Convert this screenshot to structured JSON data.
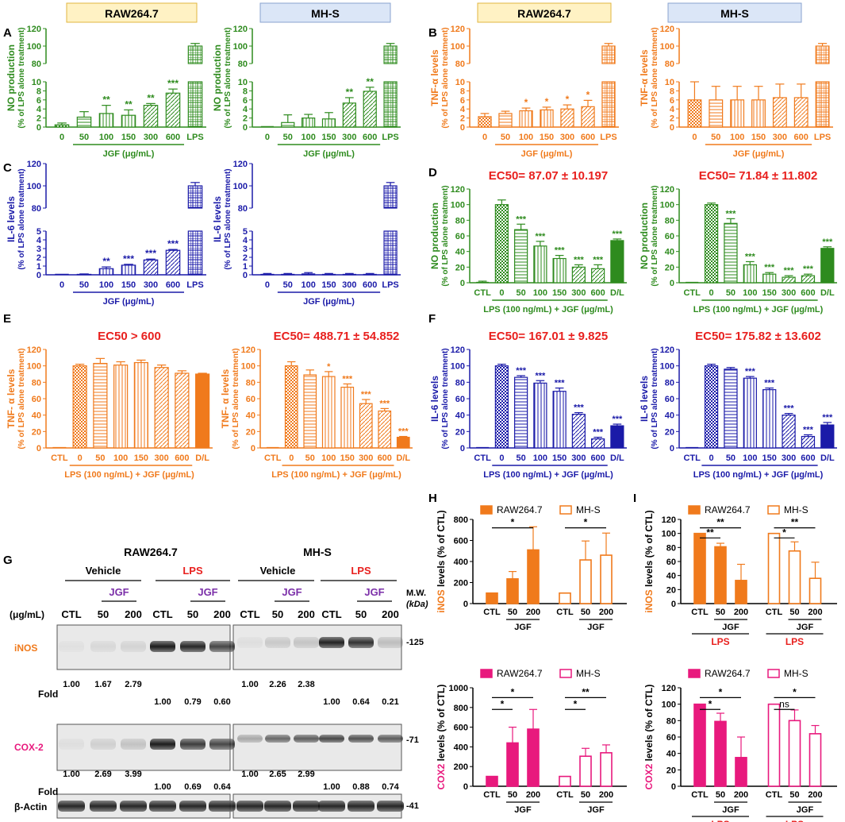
{
  "colors": {
    "green": "#2e8b1e",
    "orange": "#f07a1c",
    "blue": "#1a1aa8",
    "pink": "#e8197d",
    "red": "#e8201e",
    "purple": "#7b2fa8",
    "raw_box": "#fff2c4",
    "mhs_box": "#dbe6f7"
  },
  "panel_letters": [
    "A",
    "B",
    "C",
    "D",
    "E",
    "F",
    "G",
    "H",
    "I"
  ],
  "headers": {
    "raw": "RAW264.7",
    "mhs": "MH-S"
  },
  "chart_data": [
    {
      "id": "A1",
      "type": "bar",
      "color": "green",
      "categories": [
        "0",
        "50",
        "100",
        "150",
        "300",
        "600",
        "LPS"
      ],
      "values": [
        0.5,
        2.2,
        3.0,
        2.6,
        4.8,
        7.5,
        100
      ],
      "errors": [
        0.4,
        1.2,
        1.8,
        1.2,
        0.4,
        0.9,
        3
      ],
      "stars": [
        "",
        "",
        "**",
        "**",
        "**",
        "***",
        ""
      ],
      "ylabel": "NO production",
      "ylabel2": "(% of LPS alone treatment)",
      "xlabel": "JGF (μg/mL)",
      "yticks_low": [
        "0",
        "2",
        "4",
        "6",
        "8",
        "10"
      ],
      "yticks_high": [
        "80",
        "100",
        "120"
      ],
      "ylim_low": [
        0,
        10
      ],
      "ylim_high": [
        80,
        120
      ]
    },
    {
      "id": "A2",
      "type": "bar",
      "color": "green",
      "categories": [
        "0",
        "50",
        "100",
        "150",
        "300",
        "600",
        "LPS"
      ],
      "values": [
        0,
        1.0,
        2.0,
        1.8,
        5.3,
        7.9,
        100
      ],
      "errors": [
        0,
        1.7,
        0.8,
        1.4,
        1.2,
        0.9,
        3
      ],
      "stars": [
        "",
        "",
        "",
        "",
        "**",
        "**",
        ""
      ],
      "ylabel": "NO production",
      "ylabel2": "(% of LPS alone treatment)",
      "xlabel": "JGF (μg/mL)",
      "yticks_low": [
        "0",
        "2",
        "4",
        "6",
        "8",
        "10"
      ],
      "yticks_high": [
        "80",
        "100",
        "120"
      ],
      "ylim_low": [
        0,
        10
      ],
      "ylim_high": [
        80,
        120
      ]
    },
    {
      "id": "B1",
      "type": "bar",
      "color": "orange",
      "categories": [
        "0",
        "50",
        "100",
        "150",
        "300",
        "600",
        "LPS"
      ],
      "values": [
        2.3,
        3.0,
        3.6,
        3.8,
        4.0,
        4.5,
        100
      ],
      "errors": [
        0.7,
        0.5,
        0.6,
        0.6,
        0.9,
        1.4,
        3
      ],
      "stars": [
        "",
        "",
        "*",
        "*",
        "*",
        "*",
        ""
      ],
      "ylabel": "TNF-α levels",
      "ylabel2": "(% of LPS alone treatment)",
      "xlabel": "JGF (μg/mL)",
      "yticks_low": [
        "0",
        "2",
        "4",
        "6",
        "8",
        "10"
      ],
      "yticks_high": [
        "80",
        "100",
        "120"
      ],
      "ylim_low": [
        0,
        10
      ],
      "ylim_high": [
        80,
        120
      ]
    },
    {
      "id": "B2",
      "type": "bar",
      "color": "orange",
      "categories": [
        "0",
        "50",
        "100",
        "150",
        "300",
        "600",
        "LPS"
      ],
      "values": [
        6.0,
        6.0,
        6.0,
        6.0,
        6.5,
        6.5,
        100
      ],
      "errors": [
        4,
        3,
        3,
        3,
        3,
        3,
        3
      ],
      "stars": [
        "",
        "",
        "",
        "",
        "",
        "",
        ""
      ],
      "ylabel": "TNF-α levels",
      "ylabel2": "(% of LPS alone treatment)",
      "xlabel": "JGF (μg/mL)",
      "yticks_low": [
        "0",
        "2",
        "4",
        "6",
        "8",
        "10"
      ],
      "yticks_high": [
        "80",
        "100",
        "120"
      ],
      "ylim_low": [
        0,
        10
      ],
      "ylim_high": [
        80,
        120
      ]
    },
    {
      "id": "C1",
      "type": "bar",
      "color": "blue",
      "categories": [
        "0",
        "50",
        "100",
        "150",
        "300",
        "600",
        "LPS"
      ],
      "values": [
        0,
        0.05,
        0.7,
        1.1,
        1.7,
        2.8,
        100
      ],
      "errors": [
        0,
        0.05,
        0.2,
        0.1,
        0.1,
        0.1,
        3
      ],
      "stars": [
        "",
        "",
        "**",
        "***",
        "***",
        "***",
        ""
      ],
      "ylabel": "IL-6 levels",
      "ylabel2": "(% of LPS alone treatment)",
      "xlabel": "JGF (μg/mL)",
      "yticks_low": [
        "0",
        "1",
        "2",
        "3",
        "4",
        "5"
      ],
      "yticks_high": [
        "80",
        "100",
        "120"
      ],
      "ylim_low": [
        0,
        5
      ],
      "ylim_high": [
        80,
        120
      ]
    },
    {
      "id": "C2",
      "type": "bar",
      "color": "blue",
      "categories": [
        "0",
        "50",
        "100",
        "150",
        "300",
        "600",
        "LPS"
      ],
      "values": [
        0.05,
        0.05,
        0.1,
        0.05,
        0.05,
        0.05,
        100
      ],
      "errors": [
        0.1,
        0.1,
        0.15,
        0.1,
        0.1,
        0.1,
        3
      ],
      "stars": [
        "",
        "",
        "",
        "",
        "",
        "",
        ""
      ],
      "ylabel": "IL-6 levels",
      "ylabel2": "(% of LPS alone treatment)",
      "xlabel": "JGF (μg/mL)",
      "yticks_low": [
        "0",
        "1",
        "2",
        "3",
        "4",
        "5"
      ],
      "yticks_high": [
        "80",
        "100",
        "120"
      ],
      "ylim_low": [
        0,
        5
      ],
      "ylim_high": [
        80,
        120
      ]
    },
    {
      "id": "D1",
      "type": "bar",
      "color": "green",
      "categories": [
        "CTL",
        "0",
        "50",
        "100",
        "150",
        "300",
        "600",
        "D/L"
      ],
      "values": [
        0,
        100,
        68,
        47,
        31,
        20,
        18,
        54
      ],
      "errors": [
        2,
        6,
        7,
        6,
        4,
        3,
        5,
        2
      ],
      "stars": [
        "",
        "",
        "***",
        "***",
        "***",
        "***",
        "***",
        "***"
      ],
      "ylabel": "NO production",
      "ylabel2": "(% of LPS alone treatment)",
      "xlabel": "LPS (100 ng/mL) + JGF (μg/mL)",
      "ec50": "EC50= 87.07 ± 10.197",
      "yticks": [
        "0",
        "20",
        "40",
        "60",
        "80",
        "100",
        "120"
      ],
      "ylim": [
        0,
        120
      ]
    },
    {
      "id": "D2",
      "type": "bar",
      "color": "green",
      "categories": [
        "CTL",
        "0",
        "50",
        "100",
        "150",
        "300",
        "600",
        "D/L"
      ],
      "values": [
        0,
        100,
        76,
        23,
        11,
        7,
        9,
        44
      ],
      "errors": [
        0,
        2,
        6,
        4,
        2,
        2,
        2,
        2
      ],
      "stars": [
        "",
        "",
        "***",
        "***",
        "***",
        "***",
        "***",
        "***"
      ],
      "ylabel": "NO production",
      "ylabel2": "(% of LPS alone treatment)",
      "xlabel": "LPS (100 ng/mL) + JGF (μg/mL)",
      "ec50": "EC50= 71.84 ± 11.802",
      "yticks": [
        "0",
        "20",
        "40",
        "60",
        "80",
        "100",
        "120"
      ],
      "ylim": [
        0,
        120
      ]
    },
    {
      "id": "E1",
      "type": "bar",
      "color": "orange",
      "categories": [
        "CTL",
        "0",
        "50",
        "100",
        "150",
        "300",
        "600",
        "D/L"
      ],
      "values": [
        0,
        100,
        103,
        101,
        104,
        98,
        91,
        90
      ],
      "errors": [
        0,
        2,
        6,
        4,
        3,
        3,
        3,
        1
      ],
      "stars": [
        "",
        "",
        "",
        "",
        "",
        "",
        "",
        ""
      ],
      "ylabel": "TNF- α levels",
      "ylabel2": "(% of LPS alone treatment)",
      "xlabel": "LPS (100 ng/mL) + JGF (μg/mL)",
      "ec50": "EC50 > 600",
      "yticks": [
        "0",
        "20",
        "40",
        "60",
        "80",
        "100",
        "120"
      ],
      "ylim": [
        0,
        120
      ]
    },
    {
      "id": "E2",
      "type": "bar",
      "color": "orange",
      "categories": [
        "CTL",
        "0",
        "50",
        "100",
        "150",
        "300",
        "600",
        "D/L"
      ],
      "values": [
        0,
        100,
        89,
        87,
        74,
        54,
        45,
        13
      ],
      "errors": [
        0,
        5,
        6,
        6,
        4,
        5,
        3,
        1
      ],
      "stars": [
        "",
        "",
        "",
        "*",
        "***",
        "***",
        "***",
        "***"
      ],
      "ylabel": "TNF- α levels",
      "ylabel2": "(% of LPS alone treatment)",
      "xlabel": "LPS (100 ng/mL) + JGF (μg/mL)",
      "ec50": "EC50= 488.71 ±  54.852",
      "yticks": [
        "0",
        "20",
        "40",
        "60",
        "80",
        "100",
        "120"
      ],
      "ylim": [
        0,
        120
      ]
    },
    {
      "id": "F1",
      "type": "bar",
      "color": "blue",
      "categories": [
        "CTL",
        "0",
        "50",
        "100",
        "150",
        "300",
        "600",
        "D/L"
      ],
      "values": [
        0,
        100,
        86,
        79,
        69,
        41,
        11,
        27
      ],
      "errors": [
        0,
        2,
        2,
        3,
        4,
        2,
        2,
        2
      ],
      "stars": [
        "",
        "",
        "***",
        "***",
        "***",
        "***",
        "***",
        "***"
      ],
      "ylabel": "IL-6 levels",
      "ylabel2": "(% of LPS alone treatment)",
      "xlabel": "LPS (100 ng/mL) + JGF (μg/mL)",
      "ec50": "EC50= 167.01 ± 9.825",
      "yticks": [
        "0",
        "20",
        "40",
        "60",
        "80",
        "100",
        "120"
      ],
      "ylim": [
        0,
        120
      ]
    },
    {
      "id": "F2",
      "type": "bar",
      "color": "blue",
      "categories": [
        "CTL",
        "0",
        "50",
        "100",
        "150",
        "300",
        "600",
        "D/L"
      ],
      "values": [
        1,
        100,
        96,
        85,
        71,
        40,
        14,
        28
      ],
      "errors": [
        0,
        2,
        2,
        2,
        2,
        2,
        2,
        3
      ],
      "stars": [
        "",
        "",
        "",
        "***",
        "***",
        "***",
        "***",
        "***"
      ],
      "ylabel": "IL-6 levels",
      "ylabel2": "(% of LPS alone treatment)",
      "xlabel": "LPS (100 ng/mL) + JGF (μg/mL)",
      "ec50": "EC50= 175.82 ± 13.602",
      "yticks": [
        "0",
        "20",
        "40",
        "60",
        "80",
        "100",
        "120"
      ],
      "ylim": [
        0,
        120
      ]
    },
    {
      "id": "H1",
      "type": "bar",
      "color": "orange",
      "series": [
        {
          "name": "RAW264.7",
          "values": [
            100,
            235,
            510
          ],
          "errors": [
            0,
            70,
            220
          ]
        },
        {
          "name": "MH-S",
          "values": [
            100,
            415,
            460
          ],
          "errors": [
            0,
            180,
            210
          ]
        }
      ],
      "categories": [
        "CTL",
        "50",
        "200"
      ],
      "group_label": "JGF",
      "ylabel": "iNOS levels (% of CTL)",
      "yticks": [
        "0",
        "200",
        "400",
        "600",
        "800"
      ],
      "ylim": [
        0,
        800
      ],
      "sig": [
        [
          "",
          "*"
        ],
        [
          "",
          "*"
        ],
        [
          "",
          "*"
        ],
        [
          "",
          "*"
        ]
      ]
    },
    {
      "id": "H2",
      "type": "bar",
      "color": "pink",
      "series": [
        {
          "name": "RAW264.7",
          "values": [
            100,
            440,
            580
          ],
          "errors": [
            0,
            160,
            200
          ]
        },
        {
          "name": "MH-S",
          "values": [
            100,
            305,
            340
          ],
          "errors": [
            0,
            80,
            80
          ]
        }
      ],
      "categories": [
        "CTL",
        "50",
        "200"
      ],
      "group_label": "JGF",
      "ylabel": "COX2 levels (% of CTL)",
      "yticks": [
        "0",
        "200",
        "400",
        "600",
        "800",
        "1000"
      ],
      "ylim": [
        0,
        1000
      ],
      "sig": [
        [
          "*",
          "*"
        ],
        [
          "*",
          "**"
        ]
      ]
    },
    {
      "id": "I1",
      "type": "bar",
      "color": "orange",
      "series": [
        {
          "name": "RAW264.7",
          "values": [
            100,
            81,
            33
          ],
          "errors": [
            0,
            5,
            23
          ]
        },
        {
          "name": "MH-S",
          "values": [
            100,
            75,
            36
          ],
          "errors": [
            0,
            13,
            23
          ]
        }
      ],
      "categories": [
        "CTL",
        "50",
        "200"
      ],
      "group_label": "JGF",
      "group_label2": "LPS",
      "ylabel": "iNOS levels (% of CTL)",
      "yticks": [
        "0",
        "20",
        "40",
        "60",
        "80",
        "100",
        "120"
      ],
      "ylim": [
        0,
        120
      ],
      "sig": [
        [
          "**",
          "**"
        ],
        [
          "*",
          "**"
        ]
      ]
    },
    {
      "id": "I2",
      "type": "bar",
      "color": "pink",
      "series": [
        {
          "name": "RAW264.7",
          "values": [
            100,
            79,
            35
          ],
          "errors": [
            0,
            10,
            25
          ]
        },
        {
          "name": "MH-S",
          "values": [
            100,
            80,
            64
          ],
          "errors": [
            0,
            13,
            10
          ]
        }
      ],
      "categories": [
        "CTL",
        "50",
        "200"
      ],
      "group_label": "JGF",
      "group_label2": "LPS",
      "ylabel": "COX2 levels (% of CTL)",
      "yticks": [
        "0",
        "20",
        "40",
        "60",
        "80",
        "100",
        "120"
      ],
      "ylim": [
        0,
        120
      ],
      "sig": [
        [
          "*",
          "*"
        ],
        [
          "ns",
          "*"
        ]
      ]
    }
  ],
  "blot": {
    "title_raw": "RAW264.7",
    "title_mhs": "MH-S",
    "vehicle": "Vehicle",
    "lps": "LPS",
    "jgf": "JGF",
    "unit": "(μg/mL)",
    "mw": "M.W.",
    "kda": "(kDa)",
    "lanes": [
      "CTL",
      "50",
      "200",
      "CTL",
      "50",
      "200"
    ],
    "labels": {
      "inos": "iNOS",
      "cox": "COX-2",
      "actin": "β-Actin",
      "fold": "Fold"
    },
    "mw_marks": {
      "inos": "125",
      "cox": "71",
      "actin": "41"
    },
    "inos_fold_raw_veh": [
      "1.00",
      "1.67",
      "2.79"
    ],
    "inos_fold_raw_lps": [
      "1.00",
      "0.79",
      "0.60"
    ],
    "inos_fold_mhs_veh": [
      "1.00",
      "2.26",
      "2.38"
    ],
    "inos_fold_mhs_lps": [
      "1.00",
      "0.64",
      "0.21"
    ],
    "cox_fold_raw_veh": [
      "1.00",
      "2.69",
      "3.99"
    ],
    "cox_fold_raw_lps": [
      "1.00",
      "0.69",
      "0.64"
    ],
    "cox_fold_mhs_veh": [
      "1.00",
      "2.65",
      "2.99"
    ],
    "cox_fold_mhs_lps": [
      "1.00",
      "0.88",
      "0.74"
    ]
  }
}
